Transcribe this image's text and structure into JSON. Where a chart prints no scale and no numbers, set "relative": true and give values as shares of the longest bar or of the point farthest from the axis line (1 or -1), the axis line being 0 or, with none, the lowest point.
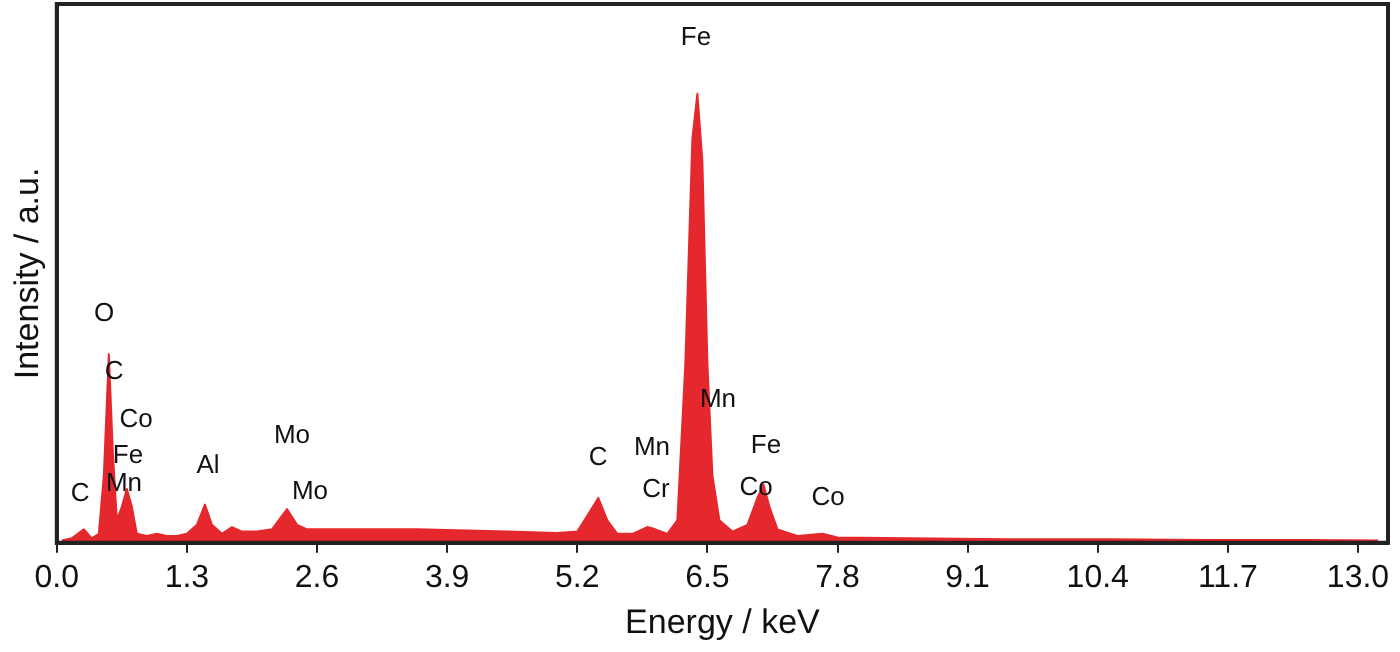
{
  "chart_data": {
    "type": "area",
    "xlabel": "Energy / keV",
    "ylabel": "Intensity / a.u.",
    "relative": true,
    "grid": false,
    "legend": false,
    "marker": "none",
    "xlim": [
      0,
      13.3
    ],
    "xticks": [
      {
        "value": 0,
        "label": "0.0"
      },
      1.3,
      2.6,
      3.9,
      5.2,
      6.5,
      7.8,
      9.1,
      10.4,
      11.7,
      {
        "value": 13,
        "label": "13.0"
      }
    ],
    "x": [
      0.05,
      0.15,
      0.27,
      0.35,
      0.42,
      0.47,
      0.52,
      0.56,
      0.6,
      0.65,
      0.7,
      0.75,
      0.8,
      0.9,
      1.0,
      1.1,
      1.2,
      1.3,
      1.4,
      1.48,
      1.55,
      1.65,
      1.75,
      1.85,
      2.0,
      2.15,
      2.3,
      2.4,
      2.5,
      2.8,
      3.2,
      3.6,
      4.0,
      4.5,
      5.0,
      5.2,
      5.3,
      5.41,
      5.5,
      5.6,
      5.75,
      5.9,
      5.98,
      6.1,
      6.2,
      6.28,
      6.35,
      6.4,
      6.45,
      6.5,
      6.55,
      6.62,
      6.75,
      6.9,
      7.0,
      7.06,
      7.12,
      7.2,
      7.4,
      7.65,
      7.8,
      8.5,
      9.5,
      10.5,
      11.5,
      12.5,
      13.2
    ],
    "series": [
      {
        "color": "#e5282d",
        "values": [
          0.005,
          0.01,
          0.03,
          0.01,
          0.02,
          0.15,
          0.42,
          0.2,
          0.05,
          0.08,
          0.12,
          0.08,
          0.02,
          0.015,
          0.02,
          0.015,
          0.015,
          0.02,
          0.04,
          0.085,
          0.04,
          0.02,
          0.035,
          0.025,
          0.025,
          0.03,
          0.075,
          0.04,
          0.03,
          0.03,
          0.03,
          0.03,
          0.028,
          0.025,
          0.022,
          0.025,
          0.06,
          0.1,
          0.05,
          0.02,
          0.02,
          0.035,
          0.03,
          0.02,
          0.05,
          0.4,
          0.9,
          1,
          0.85,
          0.4,
          0.15,
          0.05,
          0.025,
          0.04,
          0.1,
          0.13,
          0.08,
          0.03,
          0.015,
          0.02,
          0.012,
          0.01,
          0.008,
          0.008,
          0.006,
          0.006,
          0.005
        ]
      }
    ],
    "annotations": [
      "C",
      "O",
      "C",
      "Co",
      "Fe",
      "Mn",
      "Al",
      "Mo",
      "Mo",
      "C",
      "Mn",
      "Cr",
      "Fe",
      "Mn",
      "Fe",
      "Co",
      "Co"
    ]
  }
}
